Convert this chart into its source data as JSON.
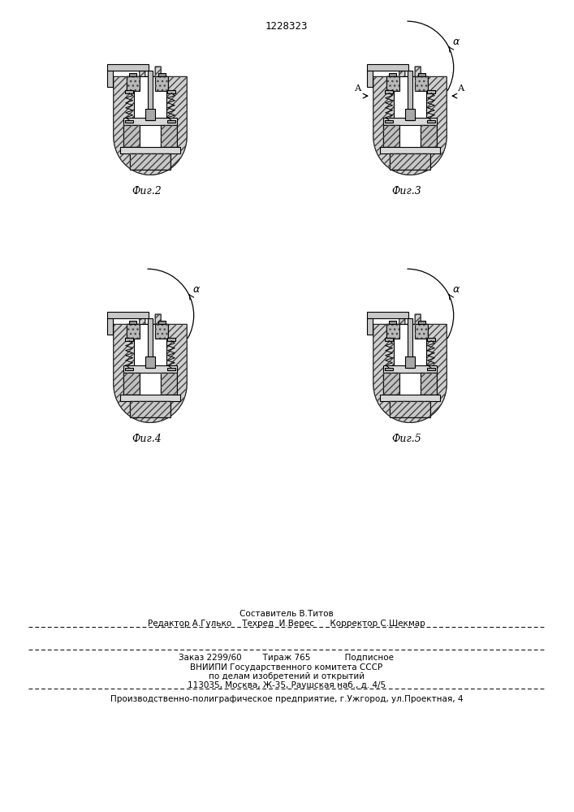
{
  "patent_number": "1228323",
  "background_color": "#ffffff",
  "fig_width": 7.07,
  "fig_height": 10.0,
  "dpi": 100,
  "fig_labels": [
    "Фиг.2",
    "Фиг.3",
    "Фиг.4",
    "Фиг.5"
  ],
  "bottom_line1": "Составитель В.Титов",
  "bottom_line2": "Редактор А.Гулько    Техред  И.Верес      Корректор С.Шекмар",
  "bottom_line3": "Заказ 2299/60        Тираж 765             Подписное",
  "bottom_line4": "ВНИИПИ Государственного комитета СССР",
  "bottom_line5": "по делам изобретений и открытий",
  "bottom_line6": "113035, Москва, Ж-35, Раушская наб., д. 4/5",
  "bottom_line7": "Производственно-полиграфическое предприятие, г.Ужгород, ул.Проектная, 4",
  "line_color": "#000000",
  "hatch_color": "#444444",
  "fill_outer": "#d0d0d0",
  "fill_inner": "#f0f0f0",
  "fill_white": "#ffffff",
  "fill_mid": "#b8b8b8",
  "fill_dark": "#909090"
}
